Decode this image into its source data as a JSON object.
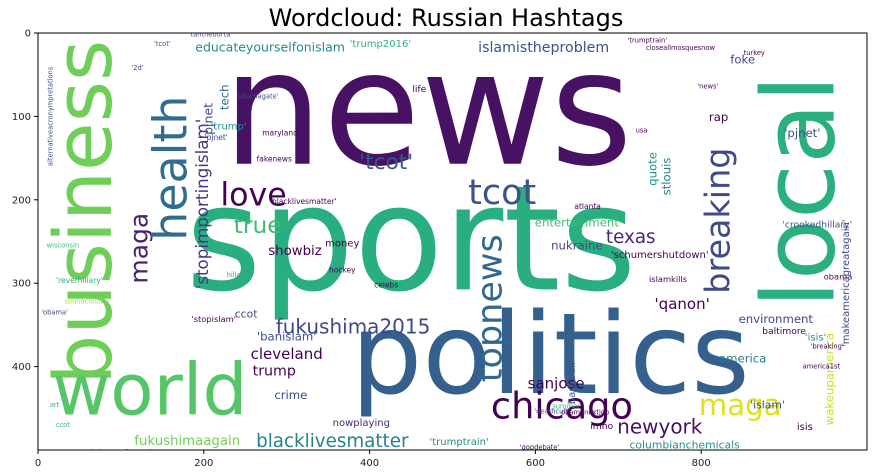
{
  "chart_data": {
    "type": "wordcloud",
    "title": "Wordcloud: Russian Hashtags",
    "x_ticks": [
      0,
      200,
      400,
      600,
      800
    ],
    "y_ticks": [
      0,
      100,
      200,
      300,
      400
    ],
    "xlim": [
      0,
      1000
    ],
    "ylim": [
      500,
      0
    ],
    "palette": "viridis",
    "words": [
      {
        "text": "news",
        "x": 470,
        "y": 92,
        "size": 190,
        "rot": 0,
        "color": "#471164"
      },
      {
        "text": "sports",
        "x": 450,
        "y": 248,
        "size": 175,
        "rot": 0,
        "color": "#29af7f"
      },
      {
        "text": "politics",
        "x": 618,
        "y": 385,
        "size": 135,
        "rot": 0,
        "color": "#35608d"
      },
      {
        "text": "business",
        "x": 55,
        "y": 215,
        "size": 95,
        "rot": -90,
        "color": "#6ece58"
      },
      {
        "text": "local",
        "x": 918,
        "y": 190,
        "size": 120,
        "rot": -90,
        "color": "#2ab07f"
      },
      {
        "text": "world",
        "x": 135,
        "y": 428,
        "size": 85,
        "rot": 0,
        "color": "#55c667"
      },
      {
        "text": "maga",
        "x": 122,
        "y": 258,
        "size": 30,
        "rot": -90,
        "color": "#482173"
      },
      {
        "text": "health",
        "x": 160,
        "y": 162,
        "size": 55,
        "rot": -90,
        "color": "#2f6c8e"
      },
      {
        "text": "love",
        "x": 260,
        "y": 195,
        "size": 38,
        "rot": 0,
        "color": "#440154"
      },
      {
        "text": "tcot",
        "x": 560,
        "y": 192,
        "size": 42,
        "rot": 0,
        "color": "#3b528b"
      },
      {
        "text": "topnews",
        "x": 546,
        "y": 330,
        "size": 42,
        "rot": -90,
        "color": "#31688e"
      },
      {
        "text": "chicago",
        "x": 632,
        "y": 447,
        "size": 44,
        "rot": 0,
        "color": "#440154"
      },
      {
        "text": "breaking",
        "x": 820,
        "y": 225,
        "size": 40,
        "rot": -90,
        "color": "#3e4a89"
      },
      {
        "text": "maga",
        "x": 847,
        "y": 446,
        "size": 35,
        "rot": 0,
        "color": "#dde318"
      },
      {
        "text": "fukushima2015",
        "x": 380,
        "y": 352,
        "size": 24,
        "rot": 0,
        "color": "#3e4989"
      },
      {
        "text": "blacklivesmatter",
        "x": 355,
        "y": 490,
        "size": 22,
        "rot": 0,
        "color": "#26828e"
      },
      {
        "text": "newyork",
        "x": 750,
        "y": 472,
        "size": 24,
        "rot": 0,
        "color": "#471164"
      },
      {
        "text": "'tcot'",
        "x": 420,
        "y": 155,
        "size": 26,
        "rot": 0,
        "color": "#38588c"
      },
      {
        "text": "true",
        "x": 265,
        "y": 230,
        "size": 28,
        "rot": 0,
        "color": "#3fbc73"
      },
      {
        "text": "texas",
        "x": 715,
        "y": 245,
        "size": 22,
        "rot": 0,
        "color": "#482878"
      },
      {
        "text": "'stopimportingislam'",
        "x": 198,
        "y": 205,
        "size": 20,
        "rot": -90,
        "color": "#453781"
      },
      {
        "text": "'qanon'",
        "x": 777,
        "y": 325,
        "size": 18,
        "rot": 0,
        "color": "#440154"
      },
      {
        "text": "sanjose",
        "x": 625,
        "y": 420,
        "size": 18,
        "rot": 0,
        "color": "#440154"
      },
      {
        "text": "showbiz",
        "x": 310,
        "y": 262,
        "size": 16,
        "rot": 0,
        "color": "#440154"
      },
      {
        "text": "cleveland",
        "x": 300,
        "y": 385,
        "size": 18,
        "rot": 0,
        "color": "#440154"
      },
      {
        "text": "trump",
        "x": 285,
        "y": 406,
        "size": 17,
        "rot": 0,
        "color": "#440154"
      },
      {
        "text": "crime",
        "x": 305,
        "y": 434,
        "size": 14,
        "rot": 0,
        "color": "#3e4a89"
      },
      {
        "text": "fukushimaagain",
        "x": 180,
        "y": 490,
        "size": 16,
        "rot": 0,
        "color": "#6ece58"
      },
      {
        "text": "'banislam'",
        "x": 300,
        "y": 364,
        "size": 14,
        "rot": 0,
        "color": "#3b528b"
      },
      {
        "text": "educateyourselfonislam",
        "x": 280,
        "y": 17,
        "size": 15,
        "rot": 0,
        "color": "#238a8d"
      },
      {
        "text": "islamistheproblem",
        "x": 610,
        "y": 18,
        "size": 17,
        "rot": 0,
        "color": "#3b528b"
      },
      {
        "text": "'trump2016'",
        "x": 413,
        "y": 14,
        "size": 12,
        "rot": 0,
        "color": "#2db27d"
      },
      {
        "text": "foke",
        "x": 850,
        "y": 32,
        "size": 14,
        "rot": 0,
        "color": "#3e4989"
      },
      {
        "text": "tech",
        "x": 225,
        "y": 77,
        "size": 14,
        "rot": -90,
        "color": "#31688e"
      },
      {
        "text": "pjnet",
        "x": 205,
        "y": 103,
        "size": 15,
        "rot": -90,
        "color": "#3e4a89"
      },
      {
        "text": "'pjnet'",
        "x": 922,
        "y": 120,
        "size": 14,
        "rot": 0,
        "color": "#3b528b"
      },
      {
        "text": "rap",
        "x": 821,
        "y": 101,
        "size": 14,
        "rot": 0,
        "color": "#440154"
      },
      {
        "text": "entertainment",
        "x": 650,
        "y": 227,
        "size": 14,
        "rot": 0,
        "color": "#3fbc73"
      },
      {
        "text": "nukraine",
        "x": 650,
        "y": 255,
        "size": 14,
        "rot": 0,
        "color": "#3e4989"
      },
      {
        "text": "quote",
        "x": 741,
        "y": 163,
        "size": 14,
        "rot": -90,
        "color": "#20938c"
      },
      {
        "text": "stlouis",
        "x": 758,
        "y": 172,
        "size": 14,
        "rot": -90,
        "color": "#26828e"
      },
      {
        "text": "'schumershutdown'",
        "x": 750,
        "y": 267,
        "size": 12,
        "rot": 0,
        "color": "#440154"
      },
      {
        "text": "environment",
        "x": 890,
        "y": 343,
        "size": 14,
        "rot": 0,
        "color": "#3e4989"
      },
      {
        "text": "america",
        "x": 850,
        "y": 390,
        "size": 14,
        "rot": 0,
        "color": "#2a788e"
      },
      {
        "text": "baseball",
        "x": 645,
        "y": 420,
        "size": 12,
        "rot": -90,
        "color": "#3b528b"
      },
      {
        "text": "columbianchemicals",
        "x": 780,
        "y": 494,
        "size": 13,
        "rot": 0,
        "color": "#20938c"
      },
      {
        "text": "'islam'",
        "x": 880,
        "y": 446,
        "size": 13,
        "rot": 0,
        "color": "#3e4a89"
      },
      {
        "text": "isis",
        "x": 925,
        "y": 473,
        "size": 12,
        "rot": 0,
        "color": "#440154"
      },
      {
        "text": "wakeupamerica",
        "x": 955,
        "y": 415,
        "size": 14,
        "rot": -90,
        "color": "#d0e11c"
      },
      {
        "text": "'trumptrain'",
        "x": 508,
        "y": 491,
        "size": 12,
        "rot": 0,
        "color": "#238a8d"
      },
      {
        "text": "nowplaying",
        "x": 390,
        "y": 468,
        "size": 12,
        "rot": 0,
        "color": "#482878"
      },
      {
        "text": "money",
        "x": 367,
        "y": 253,
        "size": 12,
        "rot": 0,
        "color": "#440154"
      },
      {
        "text": "ccot",
        "x": 251,
        "y": 337,
        "size": 13,
        "rot": 0,
        "color": "#3e4a89"
      },
      {
        "text": "'trump'",
        "x": 230,
        "y": 113,
        "size": 12,
        "rot": 0,
        "color": "#20938c"
      },
      {
        "text": "islamkills",
        "x": 760,
        "y": 295,
        "size": 10,
        "rot": 0,
        "color": "#440154"
      },
      {
        "text": "'isis'",
        "x": 938,
        "y": 366,
        "size": 12,
        "rot": 0,
        "color": "#20938c"
      },
      {
        "text": "'crookedhillary'",
        "x": 940,
        "y": 230,
        "size": 11,
        "rot": 0,
        "color": "#3b528b"
      },
      {
        "text": "obama",
        "x": 965,
        "y": 292,
        "size": 10,
        "rot": 0,
        "color": "#440154"
      },
      {
        "text": "imho",
        "x": 680,
        "y": 472,
        "size": 11,
        "rot": 0,
        "color": "#440154"
      },
      {
        "text": "baltimore",
        "x": 900,
        "y": 358,
        "size": 11,
        "rot": 0,
        "color": "#440154"
      },
      {
        "text": "life",
        "x": 460,
        "y": 68,
        "size": 11,
        "rot": 0,
        "color": "#440154"
      },
      {
        "text": "hockey",
        "x": 367,
        "y": 284,
        "size": 9,
        "rot": 0,
        "color": "#440154"
      },
      {
        "text": "celebs",
        "x": 420,
        "y": 302,
        "size": 9,
        "rot": 0,
        "color": "#440154"
      },
      {
        "text": "atlanta",
        "x": 663,
        "y": 208,
        "size": 9,
        "rot": 0,
        "color": "#440154"
      },
      {
        "text": "maryland",
        "x": 292,
        "y": 120,
        "size": 9,
        "rot": 0,
        "color": "#440154"
      },
      {
        "text": "fakenews",
        "x": 285,
        "y": 151,
        "size": 9,
        "rot": 0,
        "color": "#440154"
      },
      {
        "text": "'obamagate'",
        "x": 265,
        "y": 76,
        "size": 8,
        "rot": 0,
        "color": "#3e4a89"
      },
      {
        "text": "'blacklivesmatter'",
        "x": 320,
        "y": 202,
        "size": 9,
        "rot": 0,
        "color": "#440154"
      },
      {
        "text": "'stopislam'",
        "x": 212,
        "y": 343,
        "size": 10,
        "rot": 0,
        "color": "#440154"
      },
      {
        "text": "'reverhillary'",
        "x": 50,
        "y": 297,
        "size": 9,
        "rot": 0,
        "color": "#2db27d"
      },
      {
        "text": "soundcloud",
        "x": 55,
        "y": 322,
        "size": 8,
        "rot": 0,
        "color": "#b8de29"
      },
      {
        "text": "hillary",
        "x": 240,
        "y": 290,
        "size": 8,
        "rot": 0,
        "color": "#2db27d"
      },
      {
        "text": "wisconsin",
        "x": 30,
        "y": 255,
        "size": 8,
        "rot": 0,
        "color": "#3fbc73"
      },
      {
        "text": "ccot",
        "x": 30,
        "y": 470,
        "size": 8,
        "rot": 0,
        "color": "#2db27d"
      },
      {
        "text": "art",
        "x": 20,
        "y": 446,
        "size": 8,
        "rot": 0,
        "color": "#2db27d"
      },
      {
        "text": "christmasaftermath",
        "x": 100,
        "y": 503,
        "size": 8,
        "rot": 0,
        "color": "#3b528b"
      },
      {
        "text": "'deathcult'",
        "x": 620,
        "y": 454,
        "size": 8,
        "rot": 0,
        "color": "#3b528b"
      },
      {
        "text": "summer",
        "x": 637,
        "y": 448,
        "size": 8,
        "rot": 0,
        "color": "#2db27d"
      },
      {
        "text": "'gopdebate'",
        "x": 605,
        "y": 497,
        "size": 8,
        "rot": 0,
        "color": "#440154"
      },
      {
        "text": "obamanextjob",
        "x": 660,
        "y": 455,
        "size": 8,
        "rot": 0,
        "color": "#440154"
      },
      {
        "text": "closeallmosquesnow",
        "x": 775,
        "y": 18,
        "size": 8,
        "rot": 0,
        "color": "#440154"
      },
      {
        "text": "'trumptrain'",
        "x": 735,
        "y": 9,
        "size": 8,
        "rot": 0,
        "color": "#440154"
      },
      {
        "text": "turkey",
        "x": 864,
        "y": 24,
        "size": 8,
        "rot": 0,
        "color": "#440154"
      },
      {
        "text": "'news'",
        "x": 808,
        "y": 64,
        "size": 8,
        "rot": 0,
        "color": "#440154"
      },
      {
        "text": "tantheburta",
        "x": 208,
        "y": 2,
        "size": 8,
        "rot": 0,
        "color": "#3e4a89"
      },
      {
        "text": "'makeamericagreatagain'",
        "x": 975,
        "y": 300,
        "size": 12,
        "rot": -90,
        "color": "#3e4989"
      },
      {
        "text": "'tcot'",
        "x": 150,
        "y": 13,
        "size": 8,
        "rot": 0,
        "color": "#38598c"
      },
      {
        "text": "alternativeacronympretations",
        "x": 15,
        "y": 100,
        "size": 8,
        "rot": -90,
        "color": "#3b528b"
      },
      {
        "text": "'2d'",
        "x": 120,
        "y": 42,
        "size": 8,
        "rot": 0,
        "color": "#3e4a89"
      },
      {
        "text": "usa",
        "x": 728,
        "y": 117,
        "size": 8,
        "rot": 0,
        "color": "#440154"
      },
      {
        "text": "'pjnet'",
        "x": 215,
        "y": 125,
        "size": 9,
        "rot": 0,
        "color": "#3e4989"
      },
      {
        "text": "'obama'",
        "x": 20,
        "y": 335,
        "size": 8,
        "rot": 0,
        "color": "#3e4a89"
      },
      {
        "text": "america1st",
        "x": 945,
        "y": 400,
        "size": 8,
        "rot": 0,
        "color": "#440154"
      },
      {
        "text": "'breaking'",
        "x": 952,
        "y": 376,
        "size": 8,
        "rot": 0,
        "color": "#440154"
      }
    ]
  }
}
